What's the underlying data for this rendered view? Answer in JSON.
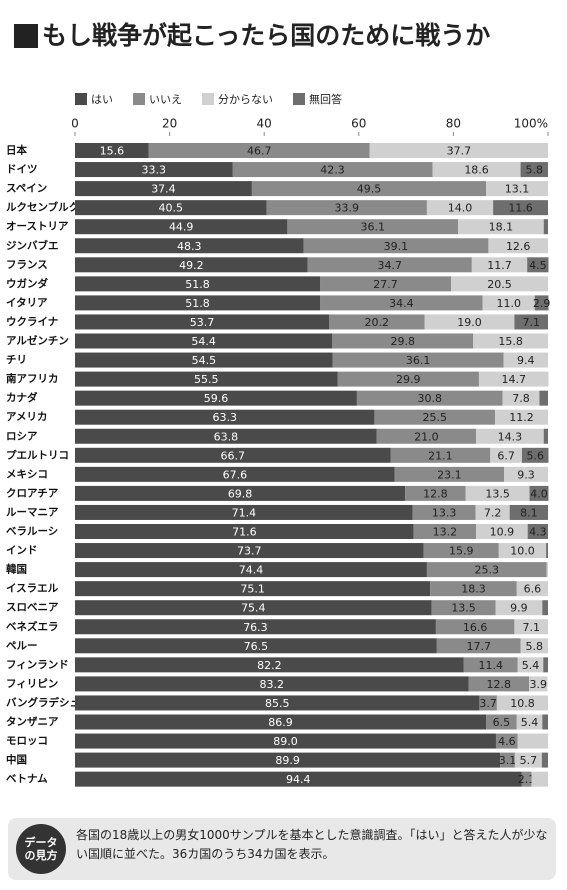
{
  "chart_data": {
    "type": "stacked-bar-horizontal",
    "title": "もし戦争が起こったら国のために戦うか",
    "categories": [
      "日本",
      "ドイツ",
      "スペイン",
      "ルクセンブルク",
      "オーストリア",
      "ジンバブエ",
      "フランス",
      "ウガンダ",
      "イタリア",
      "ウクライナ",
      "アルゼンチン",
      "チリ",
      "南アフリカ",
      "カナダ",
      "アメリカ",
      "ロシア",
      "プエルトリコ",
      "メキシコ",
      "クロアチア",
      "ルーマニア",
      "ベラルーシ",
      "インド",
      "韓国",
      "イスラエル",
      "スロベニア",
      "ベネズエラ",
      "ペルー",
      "フィンランド",
      "フィリピン",
      "バングラデシュ",
      "タンザニア",
      "モロッコ",
      "中国",
      "ベトナム"
    ],
    "xlim": [
      0,
      100
    ],
    "xticks": [
      0,
      20,
      40,
      60,
      80,
      {
        "value": 100,
        "label": "100%"
      }
    ],
    "series": [
      {
        "name": "はい",
        "color": "#4a4a4a",
        "text_color": "#ffffff",
        "values": [
          15.6,
          33.3,
          37.4,
          40.5,
          44.9,
          48.3,
          49.2,
          51.8,
          51.8,
          53.7,
          54.4,
          54.5,
          55.5,
          59.6,
          63.3,
          63.8,
          66.7,
          67.6,
          69.8,
          71.4,
          71.6,
          73.7,
          74.4,
          75.1,
          75.4,
          76.3,
          76.5,
          82.2,
          83.2,
          85.5,
          86.9,
          89.0,
          89.9,
          94.4
        ],
        "value_labels": [
          "15.6",
          "33.3",
          "37.4",
          "40.5",
          "44.9",
          "48.3",
          "49.2",
          "51.8",
          "51.8",
          "53.7",
          "54.4",
          "54.5",
          "55.5",
          "59.6",
          "63.3",
          "63.8",
          "66.7",
          "67.6",
          "69.8",
          "71.4",
          "71.6",
          "73.7",
          "74.4",
          "75.1",
          "75.4",
          "76.3",
          "76.5",
          "82.2",
          "83.2",
          "85.5",
          "86.9",
          "89.0",
          "89.9",
          "94.4"
        ]
      },
      {
        "name": "いいえ",
        "color": "#8a8a8a",
        "text_color": "#222222",
        "values": [
          46.7,
          42.3,
          49.5,
          33.9,
          36.1,
          39.1,
          34.7,
          27.7,
          34.4,
          20.2,
          29.8,
          36.1,
          29.9,
          30.8,
          25.5,
          21.0,
          21.1,
          23.1,
          12.8,
          13.3,
          13.2,
          15.9,
          25.3,
          18.3,
          13.5,
          16.6,
          17.7,
          11.4,
          12.8,
          3.7,
          6.5,
          4.6,
          3.1,
          2.1
        ],
        "value_labels": [
          "46.7",
          "42.3",
          "49.5",
          "33.9",
          "36.1",
          "39.1",
          "34.7",
          "27.7",
          "34.4",
          "20.2",
          "29.8",
          "36.1",
          "29.9",
          "30.8",
          "25.5",
          "21.0",
          "21.1",
          "23.1",
          "12.8",
          "13.3",
          "13.2",
          "15.9",
          "25.3",
          "18.3",
          "13.5",
          "16.6",
          "17.7",
          "11.4",
          "12.8",
          "3.7",
          "6.5",
          "4.6",
          "3.1",
          "2.1"
        ]
      },
      {
        "name": "分からない",
        "color": "#d0d0d0",
        "text_color": "#222222",
        "values": [
          37.7,
          18.6,
          13.1,
          14.0,
          18.1,
          12.6,
          11.7,
          20.5,
          11.0,
          19.0,
          15.8,
          9.4,
          14.7,
          7.8,
          11.2,
          14.3,
          6.7,
          9.3,
          13.5,
          7.2,
          10.9,
          10.0,
          0.3,
          6.6,
          9.9,
          7.1,
          5.8,
          5.4,
          3.9,
          10.8,
          5.4,
          6.4,
          5.7,
          3.5
        ],
        "value_labels": [
          "37.7",
          "18.6",
          "13.1",
          "14.0",
          "18.1",
          "12.6",
          "11.7",
          "20.5",
          "11.0",
          "19.0",
          "15.8",
          "9.4",
          "14.7",
          "7.8",
          "11.2",
          "14.3",
          "6.7",
          "9.3",
          "13.5",
          "7.2",
          "10.9",
          "10.0",
          null,
          "6.6",
          "9.9",
          "7.1",
          "5.8",
          "5.4",
          "3.9",
          "10.8",
          "5.4",
          null,
          "5.7",
          null
        ]
      },
      {
        "name": "無回答",
        "color": "#6e6e6e",
        "text_color": "#222222",
        "values": [
          0,
          5.8,
          0,
          11.6,
          0.9,
          0,
          4.5,
          0,
          2.9,
          7.1,
          0,
          0,
          0,
          1.8,
          0,
          0.9,
          5.6,
          0,
          4.0,
          8.1,
          4.3,
          0.4,
          0,
          0,
          1.2,
          0,
          0,
          1.0,
          0,
          0,
          1.2,
          0,
          1.3,
          0
        ],
        "value_labels": [
          null,
          "5.8",
          null,
          "11.6",
          null,
          null,
          "4.5",
          null,
          "2.9",
          "7.1",
          null,
          null,
          null,
          null,
          null,
          null,
          "5.6",
          null,
          "4.0",
          "8.1",
          "4.3",
          null,
          null,
          null,
          null,
          null,
          null,
          null,
          null,
          null,
          null,
          null,
          null,
          null
        ]
      }
    ]
  },
  "note": {
    "badge": "データの見方",
    "text": "各国の18歳以上の男女1000サンプルを基本とした意識調査。「はい」と答えた人が少ない国順に並べた。36カ国のうち34カ国を表示。"
  }
}
